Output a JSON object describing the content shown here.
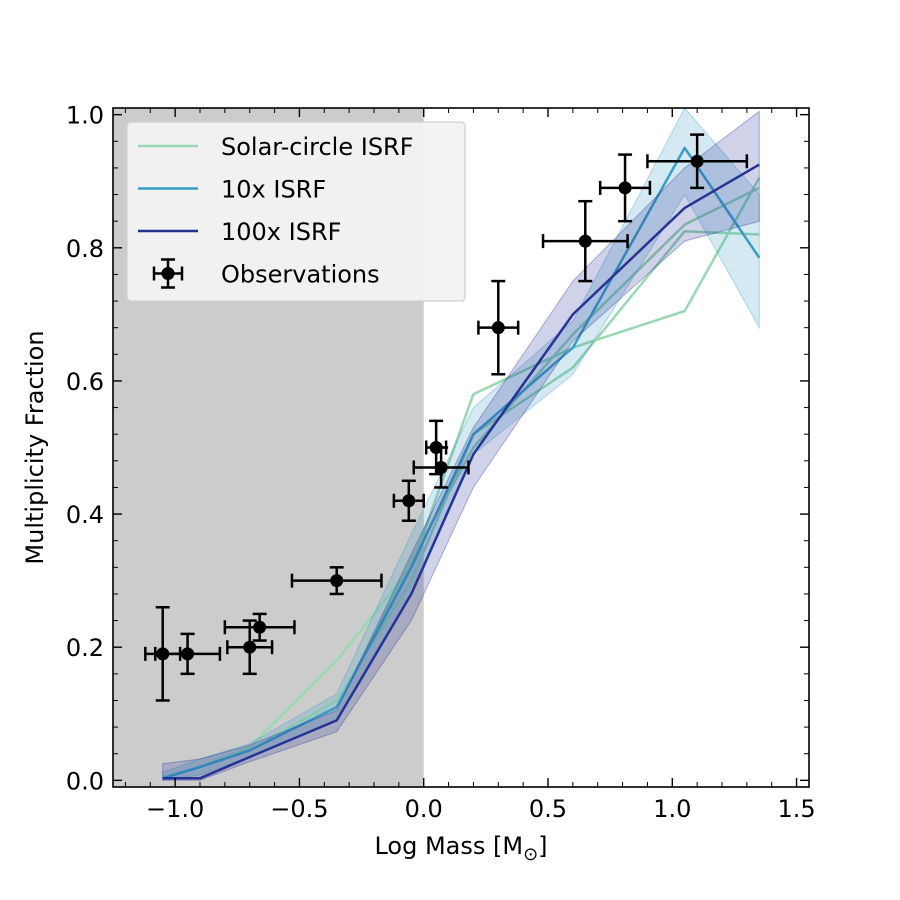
{
  "chart_data": {
    "type": "line",
    "title": "",
    "xlabel": "Log Mass [M",
    "xlabel_subscript": "⊙",
    "xlabel_suffix": "]",
    "ylabel": "Multiplicity Fraction",
    "xlim": [
      -1.25,
      1.55
    ],
    "ylim": [
      -0.01,
      1.01
    ],
    "xticks": [
      -1.0,
      -0.5,
      0.0,
      0.5,
      1.0,
      1.5
    ],
    "xtick_labels": [
      "−1.0",
      "−0.5",
      "0.0",
      "0.5",
      "1.0",
      "1.5"
    ],
    "yticks": [
      0.0,
      0.2,
      0.4,
      0.6,
      0.8,
      1.0
    ],
    "ytick_labels": [
      "0.0",
      "0.2",
      "0.4",
      "0.6",
      "0.8",
      "1.0"
    ],
    "shaded_region": {
      "x_from": -1.25,
      "x_to": 0.0,
      "color": "#cccccc"
    },
    "legend": {
      "location": "upper-left",
      "entries": [
        {
          "label": "Solar-circle ISRF",
          "kind": "line",
          "color": "#99d8b0"
        },
        {
          "label": "10x ISRF",
          "kind": "line",
          "color": "#3a9cc6"
        },
        {
          "label": "100x ISRF",
          "kind": "line",
          "color": "#253494"
        },
        {
          "label": "Observations",
          "kind": "errorbar",
          "color": "#000000"
        }
      ]
    },
    "series": [
      {
        "name": "Solar-circle ISRF",
        "color": "#99d8b0",
        "x": [
          -1.05,
          -0.9,
          -0.7,
          -0.35,
          -0.05,
          0.2,
          0.6,
          1.05,
          1.35
        ],
        "realizations": [
          [
            0.005,
            0.02,
            0.05,
            0.18,
            0.32,
            0.58,
            0.65,
            0.705,
            0.905
          ],
          [
            0.005,
            0.02,
            0.045,
            0.12,
            0.3,
            0.52,
            0.62,
            0.825,
            0.82
          ],
          [
            0.005,
            0.02,
            0.045,
            0.11,
            0.33,
            0.5,
            0.67,
            0.835,
            0.89
          ]
        ]
      },
      {
        "name": "10x ISRF",
        "color": "#3a9cc6",
        "x": [
          -1.05,
          -0.9,
          -0.7,
          -0.35,
          -0.05,
          0.2,
          0.6,
          1.05,
          1.35
        ],
        "y": [
          0.003,
          0.02,
          0.045,
          0.11,
          0.32,
          0.52,
          0.65,
          0.95,
          0.785
        ],
        "lower": [
          0.0,
          0.008,
          0.035,
          0.09,
          0.28,
          0.49,
          0.61,
          0.88,
          0.68
        ],
        "upper": [
          0.012,
          0.032,
          0.055,
          0.13,
          0.37,
          0.56,
          0.69,
          1.01,
          0.88
        ]
      },
      {
        "name": "100x ISRF",
        "color": "#253494",
        "x": [
          -1.05,
          -0.9,
          -0.7,
          -0.35,
          -0.05,
          0.2,
          0.6,
          1.05,
          1.35
        ],
        "y": [
          0.003,
          0.003,
          0.035,
          0.09,
          0.28,
          0.49,
          0.7,
          0.86,
          0.925
        ],
        "lower": [
          0.0,
          0.0,
          0.028,
          0.073,
          0.24,
          0.44,
          0.66,
          0.81,
          0.84
        ],
        "upper": [
          0.025,
          0.032,
          0.053,
          0.105,
          0.34,
          0.53,
          0.75,
          0.92,
          1.005
        ]
      }
    ],
    "observations": {
      "name": "Observations",
      "color": "#000000",
      "points": [
        {
          "x": -1.05,
          "y": 0.19,
          "xerr": 0.07,
          "yerr": 0.07
        },
        {
          "x": -0.95,
          "y": 0.19,
          "xerr": 0.13,
          "yerr": 0.03
        },
        {
          "x": -0.7,
          "y": 0.2,
          "xerr": 0.09,
          "yerr": 0.04
        },
        {
          "x": -0.66,
          "y": 0.23,
          "xerr": 0.14,
          "yerr": 0.02
        },
        {
          "x": -0.35,
          "y": 0.3,
          "xerr": 0.18,
          "yerr": 0.02
        },
        {
          "x": -0.06,
          "y": 0.42,
          "xerr": 0.06,
          "yerr": 0.03
        },
        {
          "x": 0.05,
          "y": 0.5,
          "xerr": 0.04,
          "yerr": 0.04
        },
        {
          "x": 0.07,
          "y": 0.47,
          "xerr": 0.11,
          "yerr": 0.03
        },
        {
          "x": 0.3,
          "y": 0.68,
          "xerr": 0.08,
          "yerr": 0.07
        },
        {
          "x": 0.65,
          "y": 0.81,
          "xerr": 0.17,
          "yerr": 0.06
        },
        {
          "x": 0.81,
          "y": 0.89,
          "xerr": 0.1,
          "yerr": 0.05
        },
        {
          "x": 1.1,
          "y": 0.93,
          "xerr": 0.2,
          "yerr": 0.04
        }
      ]
    }
  }
}
